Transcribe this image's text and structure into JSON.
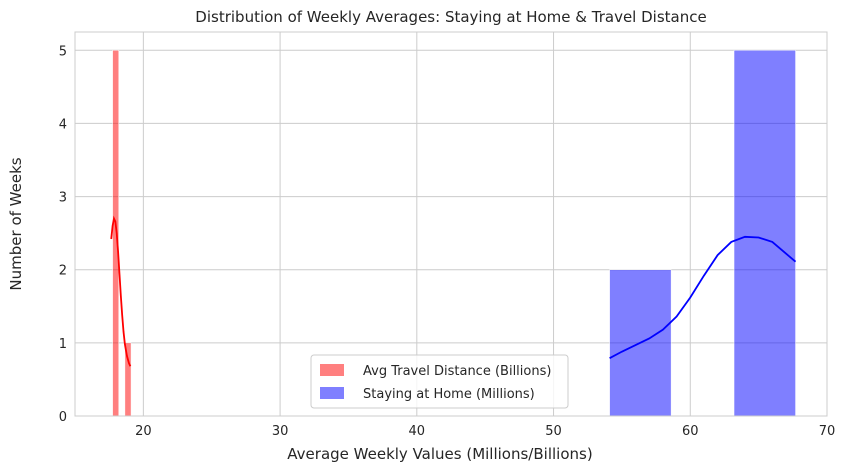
{
  "chart_data": {
    "type": "histogram",
    "title": "Distribution of Weekly Averages: Staying at Home & Travel Distance",
    "xlabel": "Average Weekly Values (Millions/Billions)",
    "ylabel": "Number of Weeks",
    "xlim": [
      15,
      70
    ],
    "ylim": [
      0,
      5.25
    ],
    "xticks": [
      20,
      30,
      40,
      50,
      60,
      70
    ],
    "yticks": [
      0,
      1,
      2,
      3,
      4,
      5
    ],
    "grid": true,
    "legend_position": "bottom-center",
    "series": [
      {
        "name": "Avg Travel Distance (Billions)",
        "color": "#ff0000",
        "bins": [
          {
            "start": 17.75,
            "end": 18.2,
            "count": 5
          },
          {
            "start": 18.65,
            "end": 19.1,
            "count": 1
          }
        ],
        "kde": [
          [
            17.65,
            2.42
          ],
          [
            17.75,
            2.6
          ],
          [
            17.85,
            2.7
          ],
          [
            17.95,
            2.66
          ],
          [
            18.05,
            2.5
          ],
          [
            18.15,
            2.25
          ],
          [
            18.25,
            1.95
          ],
          [
            18.35,
            1.65
          ],
          [
            18.45,
            1.38
          ],
          [
            18.55,
            1.15
          ],
          [
            18.65,
            0.98
          ],
          [
            18.8,
            0.82
          ],
          [
            18.95,
            0.72
          ],
          [
            19.05,
            0.68
          ]
        ]
      },
      {
        "name": "Staying at Home (Millions)",
        "color": "#0000ff",
        "bins": [
          {
            "start": 54.1,
            "end": 58.6,
            "count": 2
          },
          {
            "start": 63.2,
            "end": 67.7,
            "count": 5
          }
        ],
        "kde": [
          [
            54.1,
            0.79
          ],
          [
            55,
            0.88
          ],
          [
            56,
            0.97
          ],
          [
            57,
            1.06
          ],
          [
            58,
            1.18
          ],
          [
            59,
            1.36
          ],
          [
            60,
            1.62
          ],
          [
            61,
            1.92
          ],
          [
            62,
            2.2
          ],
          [
            63,
            2.38
          ],
          [
            64,
            2.45
          ],
          [
            65,
            2.44
          ],
          [
            66,
            2.38
          ],
          [
            67,
            2.22
          ],
          [
            67.7,
            2.11
          ]
        ]
      }
    ]
  }
}
